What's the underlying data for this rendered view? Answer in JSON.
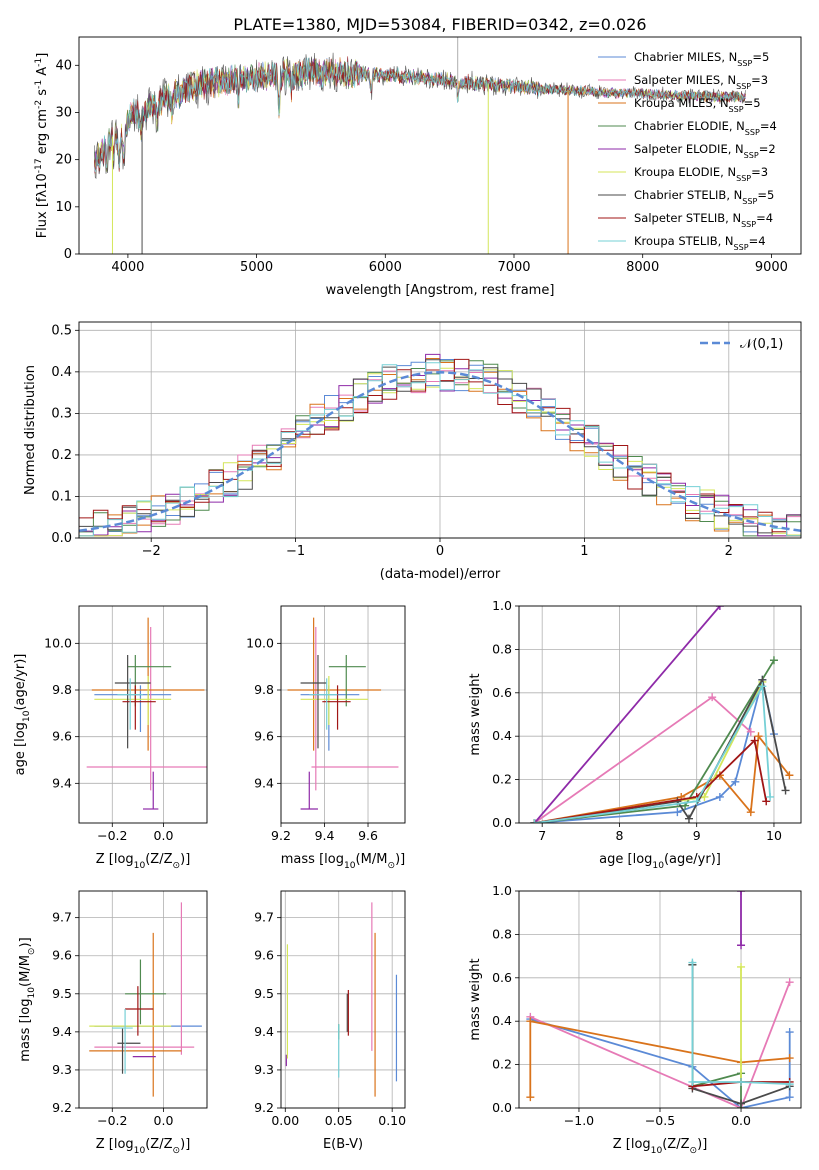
{
  "title": "PLATE=1380, MJD=53084, FIBERID=0342, z=0.026",
  "colors": {
    "chabrier_miles": "#5b8ad6",
    "salpeter_miles": "#e67ab6",
    "kroupa_miles": "#d9731b",
    "chabrier_elodie": "#4f8a4f",
    "salpeter_elodie": "#8e2aa8",
    "kroupa_elodie": "#d4e65a",
    "chabrier_stelib": "#4a4a4a",
    "salpeter_stelib": "#a01616",
    "kroupa_stelib": "#76d0d6"
  },
  "chart_data": [
    {
      "id": "spectrum",
      "type": "line",
      "xlabel": "wavelength [Angstrom, rest frame]",
      "ylabel": "Flux [f$\\lambda$10$^{-17}$ erg cm$^{-2}$ s$^{-1}$ A$^{-1}$]",
      "xlim": [
        3620,
        9230
      ],
      "ylim": [
        0,
        46
      ],
      "xticks": [
        4000,
        5000,
        6000,
        7000,
        8000,
        9000
      ],
      "yticks": [
        0,
        10,
        20,
        30,
        40
      ],
      "grid": false,
      "legend": "top-right",
      "series": [
        {
          "name": "Chabrier MILES, N$_{SSP}$=5",
          "color_key": "chabrier_miles"
        },
        {
          "name": "Salpeter MILES, N$_{SSP}$=3",
          "color_key": "salpeter_miles"
        },
        {
          "name": "Kroupa MILES, N$_{SSP}$=5",
          "color_key": "kroupa_miles"
        },
        {
          "name": "Chabrier ELODIE, N$_{SSP}$=4",
          "color_key": "chabrier_elodie"
        },
        {
          "name": "Salpeter ELODIE, N$_{SSP}$=2",
          "color_key": "salpeter_elodie"
        },
        {
          "name": "Kroupa ELODIE, N$_{SSP}$=3",
          "color_key": "kroupa_elodie"
        },
        {
          "name": "Chabrier STELIB, N$_{SSP}$=5",
          "color_key": "chabrier_stelib"
        },
        {
          "name": "Salpeter STELIB, N$_{SSP}$=4",
          "color_key": "salpeter_stelib"
        },
        {
          "name": "Kroupa STELIB, N$_{SSP}$=4",
          "color_key": "kroupa_stelib"
        }
      ],
      "continuum": {
        "x": [
          3740,
          3850,
          3950,
          4050,
          4150,
          4300,
          4450,
          4600,
          4800,
          5000,
          5200,
          5400,
          5600,
          5800,
          6000,
          6200,
          6400,
          6600,
          6800,
          7000,
          7200,
          7400,
          7600,
          7800,
          8000,
          8200,
          8400,
          8600,
          8800,
          9000,
          9200
        ],
        "y": [
          19,
          24,
          27,
          30,
          31,
          33,
          35,
          36,
          37,
          37.5,
          38,
          38.5,
          38.5,
          38.2,
          38,
          37.5,
          37,
          36.5,
          36,
          35.5,
          35,
          34.8,
          34.5,
          34,
          34,
          33.8,
          33.5,
          33.3,
          33.2,
          33,
          33
        ]
      }
    },
    {
      "id": "residuals",
      "type": "histogram",
      "xlabel": "(data-model)/error",
      "ylabel": "Normed distribution",
      "xlim": [
        -2.5,
        2.5
      ],
      "ylim": [
        0,
        0.52
      ],
      "xticks": [
        -2,
        -1,
        0,
        1,
        2
      ],
      "yticks": [
        0,
        0.1,
        0.2,
        0.3,
        0.4,
        0.5
      ],
      "grid": true,
      "legend": "top-right",
      "normal_label": "$\\mathcal{N}(0,1)$",
      "bin_width": 0.1,
      "bin_start": -2.5
    },
    {
      "id": "age_vs_Z",
      "type": "errorbar",
      "xlabel": "Z [log$_{10}$(Z/Z$_\\odot$)]",
      "ylabel": "age  [log$_{10}$(age/yr)]",
      "xlim": [
        -0.33,
        0.17
      ],
      "ylim": [
        9.23,
        10.16
      ],
      "xticks": [
        -0.2,
        0.0
      ],
      "yticks": [
        9.4,
        9.6,
        9.8,
        10.0
      ],
      "grid": true,
      "points": [
        {
          "key": "chabrier_miles",
          "x": -0.09,
          "xerr": [
            0.18,
            0.12
          ],
          "y": 9.78,
          "yerr": [
            0.16,
            0.04
          ]
        },
        {
          "key": "salpeter_miles",
          "x": -0.05,
          "xerr": [
            0.25,
            0.25
          ],
          "y": 9.47,
          "yerr": [
            0.1,
            0.6
          ]
        },
        {
          "key": "kroupa_miles",
          "x": -0.06,
          "xerr": [
            0.22,
            0.22
          ],
          "y": 9.8,
          "yerr": [
            0.26,
            0.31
          ]
        },
        {
          "key": "chabrier_elodie",
          "x": -0.11,
          "xerr": [
            0.03,
            0.14
          ],
          "y": 9.9,
          "yerr": [
            0.17,
            0.05
          ]
        },
        {
          "key": "salpeter_elodie",
          "x": -0.04,
          "xerr": [
            0.04,
            0.02
          ],
          "y": 9.29,
          "yerr": [
            0.0,
            0.16
          ]
        },
        {
          "key": "kroupa_elodie",
          "x": -0.06,
          "xerr": [
            0.21,
            0.09
          ],
          "y": 9.76,
          "yerr": [
            0.11,
            0.1
          ]
        },
        {
          "key": "chabrier_stelib",
          "x": -0.14,
          "xerr": [
            0.05,
            0.09
          ],
          "y": 9.83,
          "yerr": [
            0.28,
            0.12
          ]
        },
        {
          "key": "salpeter_stelib",
          "x": -0.11,
          "xerr": [
            0.05,
            0.08
          ],
          "y": 9.75,
          "yerr": [
            0.12,
            0.07
          ]
        },
        {
          "key": "kroupa_stelib",
          "x": -0.13,
          "xerr": [
            0.05,
            0.05
          ],
          "y": 9.78,
          "yerr": [
            0.15,
            0.07
          ]
        }
      ]
    },
    {
      "id": "age_vs_mass",
      "type": "errorbar",
      "xlabel": "mass [log$_{10}$(M/M$_\\odot$)]",
      "ylabel": "",
      "xlim": [
        9.2,
        9.77
      ],
      "ylim": [
        9.23,
        10.16
      ],
      "xticks": [
        9.2,
        9.4,
        9.6
      ],
      "yticks": [
        9.4,
        9.6,
        9.8,
        10.0
      ],
      "grid": true,
      "points": [
        {
          "key": "chabrier_miles",
          "x": 9.42,
          "xerr": [
            0.13,
            0.14
          ],
          "y": 9.78,
          "yerr": [
            0.24,
            0.04
          ]
        },
        {
          "key": "salpeter_miles",
          "x": 9.36,
          "xerr": [
            0.02,
            0.38
          ],
          "y": 9.47,
          "yerr": [
            0.1,
            0.6
          ]
        },
        {
          "key": "kroupa_miles",
          "x": 9.35,
          "xerr": [
            0.12,
            0.31
          ],
          "y": 9.8,
          "yerr": [
            0.26,
            0.31
          ]
        },
        {
          "key": "chabrier_elodie",
          "x": 9.5,
          "xerr": [
            0.08,
            0.09
          ],
          "y": 9.9,
          "yerr": [
            0.17,
            0.05
          ]
        },
        {
          "key": "salpeter_elodie",
          "x": 9.33,
          "xerr": [
            0.04,
            0.04
          ],
          "y": 9.29,
          "yerr": [
            0.0,
            0.16
          ]
        },
        {
          "key": "kroupa_elodie",
          "x": 9.42,
          "xerr": [
            0.13,
            0.18
          ],
          "y": 9.76,
          "yerr": [
            0.11,
            0.1
          ]
        },
        {
          "key": "chabrier_stelib",
          "x": 9.37,
          "xerr": [
            0.08,
            0.04
          ],
          "y": 9.83,
          "yerr": [
            0.28,
            0.12
          ]
        },
        {
          "key": "salpeter_stelib",
          "x": 9.46,
          "xerr": [
            0.07,
            0.06
          ],
          "y": 9.75,
          "yerr": [
            0.12,
            0.07
          ]
        },
        {
          "key": "kroupa_stelib",
          "x": 9.41,
          "xerr": [
            0.08,
            0.05
          ],
          "y": 9.78,
          "yerr": [
            0.15,
            0.07
          ]
        }
      ]
    },
    {
      "id": "weight_vs_age",
      "type": "line",
      "xlabel": "age  [log$_{10}$(age/yr)]",
      "ylabel": "mass weight",
      "xlim": [
        6.7,
        10.35
      ],
      "ylim": [
        0,
        1.0
      ],
      "xticks": [
        7,
        8,
        9,
        10
      ],
      "yticks": [
        0.0,
        0.2,
        0.4,
        0.6,
        0.8,
        1.0
      ],
      "grid": true,
      "series": [
        {
          "key": "chabrier_miles",
          "x": [
            6.9,
            8.75,
            9.3,
            9.5,
            9.85,
            10.0
          ],
          "y": [
            0.0,
            0.05,
            0.12,
            0.19,
            0.66,
            0.41
          ]
        },
        {
          "key": "salpeter_miles",
          "x": [
            6.9,
            9.2,
            9.7
          ],
          "y": [
            0.0,
            0.58,
            0.42
          ]
        },
        {
          "key": "kroupa_miles",
          "x": [
            6.9,
            8.8,
            9.3,
            9.7,
            9.8,
            10.2
          ],
          "y": [
            0.0,
            0.12,
            0.22,
            0.05,
            0.4,
            0.22
          ]
        },
        {
          "key": "chabrier_elodie",
          "x": [
            6.9,
            8.85,
            10.0
          ],
          "y": [
            0.0,
            0.08,
            0.75
          ]
        },
        {
          "key": "salpeter_elodie",
          "x": [
            6.9,
            9.3
          ],
          "y": [
            0.0,
            1.0
          ]
        },
        {
          "key": "kroupa_elodie",
          "x": [
            6.9,
            9.1,
            9.85
          ],
          "y": [
            0.0,
            0.12,
            0.65
          ]
        },
        {
          "key": "chabrier_stelib",
          "x": [
            6.9,
            8.75,
            8.9,
            9.85,
            10.15
          ],
          "y": [
            0.0,
            0.1,
            0.02,
            0.66,
            0.15
          ]
        },
        {
          "key": "salpeter_stelib",
          "x": [
            6.9,
            9.0,
            9.75,
            9.9
          ],
          "y": [
            0.0,
            0.12,
            0.38,
            0.1
          ]
        },
        {
          "key": "kroupa_stelib",
          "x": [
            6.9,
            9.0,
            9.85,
            9.95
          ],
          "y": [
            0.0,
            0.1,
            0.63,
            0.12
          ]
        }
      ]
    },
    {
      "id": "mass_vs_Z",
      "type": "errorbar",
      "xlabel": "Z [log$_{10}$(Z/Z$_\\odot$)]",
      "ylabel": "mass [log$_{10}$(M/M$_\\odot$)]",
      "xlim": [
        -0.33,
        0.17
      ],
      "ylim": [
        9.2,
        9.77
      ],
      "xticks": [
        -0.2,
        0.0
      ],
      "yticks": [
        9.2,
        9.3,
        9.4,
        9.5,
        9.6,
        9.7
      ],
      "grid": true,
      "points": [
        {
          "key": "chabrier_miles",
          "x": -0.09,
          "xerr": [
            0.18,
            0.24
          ],
          "y": 9.415,
          "yerr": [
            0.0,
            0.0
          ]
        },
        {
          "key": "salpeter_miles",
          "x": 0.07,
          "xerr": [
            0.34,
            0.05
          ],
          "y": 9.36,
          "yerr": [
            0.02,
            0.38
          ]
        },
        {
          "key": "kroupa_miles",
          "x": -0.04,
          "xerr": [
            0.25,
            0.11
          ],
          "y": 9.35,
          "yerr": [
            0.12,
            0.31
          ]
        },
        {
          "key": "chabrier_elodie",
          "x": -0.09,
          "xerr": [
            0.06,
            0.1
          ],
          "y": 9.5,
          "yerr": [
            0.08,
            0.09
          ]
        },
        {
          "key": "salpeter_elodie",
          "x": -0.06,
          "xerr": [
            0.06,
            0.03
          ],
          "y": 9.335,
          "yerr": [
            0.0,
            0.0
          ]
        },
        {
          "key": "kroupa_elodie",
          "x": -0.07,
          "xerr": [
            0.22,
            0.1
          ],
          "y": 9.415,
          "yerr": [
            0.0,
            0.0
          ]
        },
        {
          "key": "chabrier_stelib",
          "x": -0.16,
          "xerr": [
            0.02,
            0.07
          ],
          "y": 9.37,
          "yerr": [
            0.08,
            0.04
          ]
        },
        {
          "key": "salpeter_stelib",
          "x": -0.1,
          "xerr": [
            0.05,
            0.06
          ],
          "y": 9.46,
          "yerr": [
            0.07,
            0.06
          ]
        },
        {
          "key": "kroupa_stelib",
          "x": -0.15,
          "xerr": [
            0.05,
            0.03
          ],
          "y": 9.41,
          "yerr": [
            0.12,
            0.05
          ]
        }
      ]
    },
    {
      "id": "mass_vs_ebv",
      "type": "errorbar",
      "xlabel": "E(B-V)",
      "ylabel": "",
      "xlim": [
        -0.004,
        0.112
      ],
      "ylim": [
        9.2,
        9.77
      ],
      "xticks": [
        0.0,
        0.05,
        0.1
      ],
      "yticks": [
        9.2,
        9.3,
        9.4,
        9.5,
        9.6,
        9.7
      ],
      "grid": true,
      "points": [
        {
          "key": "chabrier_miles",
          "x": 0.104,
          "xerr": [
            0,
            0
          ],
          "y": 9.41,
          "yerr": [
            0.14,
            0.14
          ]
        },
        {
          "key": "salpeter_miles",
          "x": 0.081,
          "xerr": [
            0,
            0
          ],
          "y": 9.54,
          "yerr": [
            0.19,
            0.2
          ]
        },
        {
          "key": "kroupa_miles",
          "x": 0.084,
          "xerr": [
            0,
            0
          ],
          "y": 9.44,
          "yerr": [
            0.21,
            0.22
          ]
        },
        {
          "key": "chabrier_elodie",
          "x": 0.05,
          "xerr": [
            0,
            0
          ],
          "y": 9.4,
          "yerr": [
            0.02,
            0.02
          ]
        },
        {
          "key": "salpeter_elodie",
          "x": 0.001,
          "xerr": [
            0,
            0
          ],
          "y": 9.32,
          "yerr": [
            0.01,
            0.02
          ]
        },
        {
          "key": "kroupa_elodie",
          "x": 0.002,
          "xerr": [
            0,
            0
          ],
          "y": 9.48,
          "yerr": [
            0.15,
            0.15
          ]
        },
        {
          "key": "chabrier_stelib",
          "x": 0.058,
          "xerr": [
            0,
            0
          ],
          "y": 9.45,
          "yerr": [
            0.05,
            0.05
          ]
        },
        {
          "key": "salpeter_stelib",
          "x": 0.059,
          "xerr": [
            0,
            0
          ],
          "y": 9.45,
          "yerr": [
            0.06,
            0.06
          ]
        },
        {
          "key": "kroupa_stelib",
          "x": 0.05,
          "xerr": [
            0,
            0
          ],
          "y": 9.35,
          "yerr": [
            0.07,
            0.07
          ]
        }
      ]
    },
    {
      "id": "weight_vs_Z",
      "type": "line",
      "xlabel": "Z [log$_{10}$(Z/Z$_\\odot$)]",
      "ylabel": "mass weight",
      "xlim": [
        -1.37,
        0.37
      ],
      "ylim": [
        0,
        1.0
      ],
      "xticks": [
        -1.0,
        -0.5,
        0.0
      ],
      "yticks": [
        0.0,
        0.2,
        0.4,
        0.6,
        0.8,
        1.0
      ],
      "grid": true,
      "series": [
        {
          "key": "chabrier_miles",
          "x": [
            -1.3,
            -0.3,
            0.0,
            0.3,
            0.3
          ],
          "y": [
            0.41,
            0.19,
            0.0,
            0.05,
            0.35
          ]
        },
        {
          "key": "salpeter_miles",
          "x": [
            -1.3,
            0.0,
            0.3
          ],
          "y": [
            0.42,
            0.0,
            0.58
          ]
        },
        {
          "key": "kroupa_miles",
          "x": [
            -1.3,
            -1.3,
            0.0,
            0.3
          ],
          "y": [
            0.05,
            0.4,
            0.21,
            0.23
          ]
        },
        {
          "key": "chabrier_elodie",
          "x": [
            -0.3,
            -0.3,
            0.0,
            0.0
          ],
          "y": [
            0.66,
            0.1,
            0.16,
            0.0
          ]
        },
        {
          "key": "salpeter_elodie",
          "x": [
            0.0,
            0.0
          ],
          "y": [
            0.75,
            1.0
          ]
        },
        {
          "key": "kroupa_elodie",
          "x": [
            0.0,
            0.0
          ],
          "y": [
            0.65,
            0.12
          ]
        },
        {
          "key": "chabrier_stelib",
          "x": [
            -0.3,
            -0.3,
            0.0,
            0.3
          ],
          "y": [
            0.66,
            0.09,
            0.02,
            0.1
          ]
        },
        {
          "key": "salpeter_stelib",
          "x": [
            -0.3,
            0.0,
            0.3
          ],
          "y": [
            0.1,
            0.12,
            0.12
          ]
        },
        {
          "key": "kroupa_stelib",
          "x": [
            -0.3,
            -0.3,
            0.0,
            0.3
          ],
          "y": [
            0.67,
            0.12,
            0.12,
            0.11
          ]
        }
      ]
    }
  ]
}
